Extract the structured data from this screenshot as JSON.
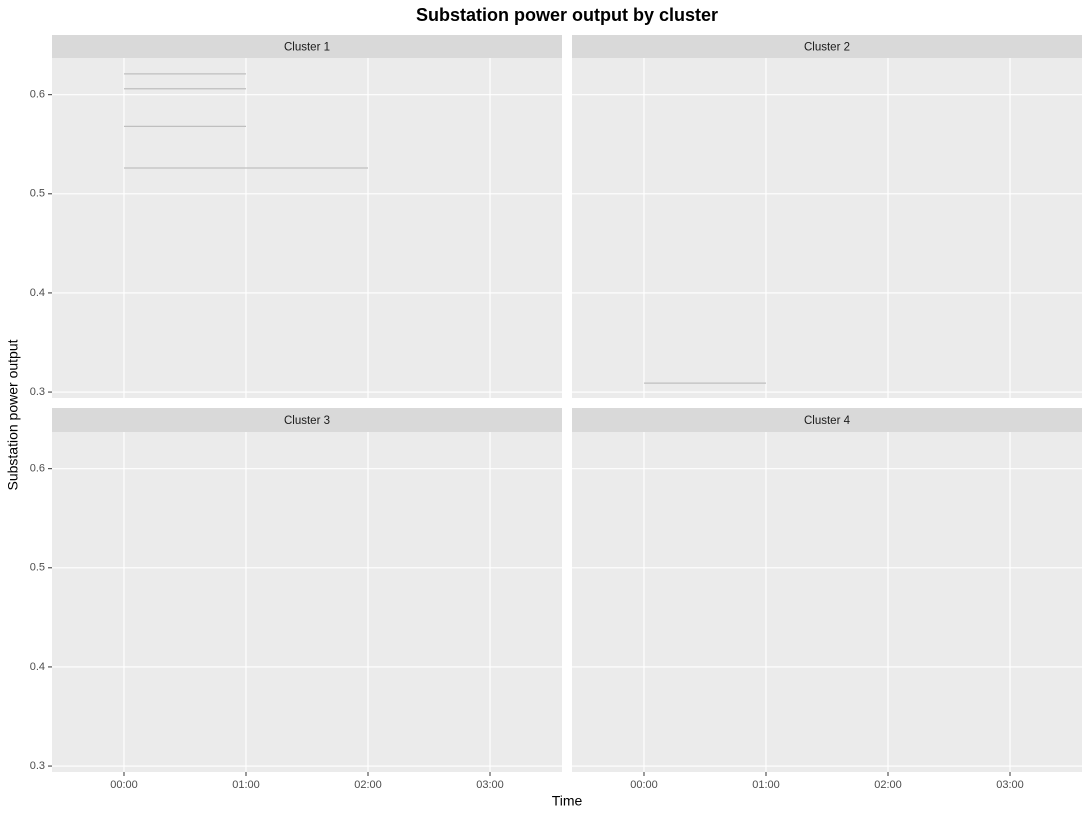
{
  "title": "Substation power output by cluster",
  "x_label": "Time",
  "y_label": "Substation power output",
  "chart_data": [
    {
      "type": "line",
      "title": "Cluster 1",
      "color": "#bfbfbf",
      "grid": true,
      "xlim": [
        -0.59,
        3.59
      ],
      "xticks": [
        {
          "value": 0,
          "label": "00:00"
        },
        {
          "value": 1,
          "label": "01:00"
        },
        {
          "value": 2,
          "label": "02:00"
        },
        {
          "value": 3,
          "label": "03:00"
        }
      ],
      "ylim": [
        0.294,
        0.637
      ],
      "yticks": [
        0.3,
        0.4,
        0.5,
        0.6
      ],
      "series": [
        {
          "x": [
            0,
            1
          ],
          "values": [
            0.621,
            0.621
          ]
        },
        {
          "x": [
            0,
            1
          ],
          "values": [
            0.606,
            0.606
          ]
        },
        {
          "x": [
            0,
            1
          ],
          "values": [
            0.568,
            0.568
          ]
        },
        {
          "x": [
            0,
            2
          ],
          "values": [
            0.526,
            0.526
          ]
        }
      ]
    },
    {
      "type": "line",
      "title": "Cluster 2",
      "color": "#bfbfbf",
      "grid": true,
      "xlim": [
        -0.59,
        3.59
      ],
      "xticks": [
        {
          "value": 0,
          "label": "00:00"
        },
        {
          "value": 1,
          "label": "01:00"
        },
        {
          "value": 2,
          "label": "02:00"
        },
        {
          "value": 3,
          "label": "03:00"
        }
      ],
      "ylim": [
        0.294,
        0.637
      ],
      "yticks": [
        0.3,
        0.4,
        0.5,
        0.6
      ],
      "series": [
        {
          "x": [
            0,
            1
          ],
          "values": [
            0.309,
            0.309
          ]
        }
      ]
    },
    {
      "type": "line",
      "title": "Cluster 3",
      "color": "#bfbfbf",
      "grid": true,
      "xlim": [
        -0.59,
        3.59
      ],
      "xticks": [
        {
          "value": 0,
          "label": "00:00"
        },
        {
          "value": 1,
          "label": "01:00"
        },
        {
          "value": 2,
          "label": "02:00"
        },
        {
          "value": 3,
          "label": "03:00"
        }
      ],
      "ylim": [
        0.294,
        0.637
      ],
      "yticks": [
        0.3,
        0.4,
        0.5,
        0.6
      ],
      "series": []
    },
    {
      "type": "line",
      "title": "Cluster 4",
      "color": "#bfbfbf",
      "grid": true,
      "xlim": [
        -0.59,
        3.59
      ],
      "xticks": [
        {
          "value": 0,
          "label": "00:00"
        },
        {
          "value": 1,
          "label": "01:00"
        },
        {
          "value": 2,
          "label": "02:00"
        },
        {
          "value": 3,
          "label": "03:00"
        }
      ],
      "ylim": [
        0.294,
        0.637
      ],
      "yticks": [
        0.3,
        0.4,
        0.5,
        0.6
      ],
      "series": []
    }
  ]
}
